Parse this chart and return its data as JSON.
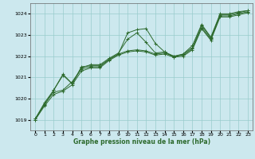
{
  "xlabel": "Graphe pression niveau de la mer (hPa)",
  "xlim": [
    -0.5,
    23.5
  ],
  "ylim": [
    1018.5,
    1024.5
  ],
  "yticks": [
    1019,
    1020,
    1021,
    1022,
    1023,
    1024
  ],
  "xticks": [
    0,
    1,
    2,
    3,
    4,
    5,
    6,
    7,
    8,
    9,
    10,
    11,
    12,
    13,
    14,
    15,
    16,
    17,
    18,
    19,
    20,
    21,
    22,
    23
  ],
  "bg_color": "#cce8ee",
  "grid_color": "#99cccc",
  "line_color": "#2d6a2d",
  "series": [
    [
      1019.05,
      1019.7,
      1020.4,
      1021.1,
      1020.7,
      1021.5,
      1021.55,
      1021.55,
      1021.85,
      1022.1,
      1023.1,
      1023.25,
      1023.3,
      1022.6,
      1022.2,
      1021.95,
      1022.1,
      1022.5,
      1023.5,
      1022.9,
      1024.0,
      1024.0,
      1024.1,
      1024.15
    ],
    [
      1019.05,
      1019.8,
      1020.4,
      1021.15,
      1020.7,
      1021.45,
      1021.6,
      1021.6,
      1021.9,
      1022.15,
      1022.8,
      1023.1,
      1022.65,
      1022.15,
      1022.2,
      1022.0,
      1022.1,
      1022.4,
      1023.45,
      1022.85,
      1023.95,
      1023.95,
      1024.05,
      1024.15
    ],
    [
      1019.0,
      1019.75,
      1020.3,
      1020.4,
      1020.8,
      1021.4,
      1021.5,
      1021.5,
      1021.85,
      1022.1,
      1022.25,
      1022.3,
      1022.25,
      1022.1,
      1022.15,
      1022.0,
      1022.05,
      1022.35,
      1023.35,
      1022.8,
      1023.9,
      1023.9,
      1024.0,
      1024.1
    ],
    [
      1019.0,
      1019.65,
      1020.2,
      1020.35,
      1020.65,
      1021.3,
      1021.45,
      1021.45,
      1021.8,
      1022.05,
      1022.2,
      1022.25,
      1022.2,
      1022.05,
      1022.1,
      1021.95,
      1022.0,
      1022.3,
      1023.3,
      1022.75,
      1023.85,
      1023.85,
      1023.95,
      1024.05
    ]
  ]
}
